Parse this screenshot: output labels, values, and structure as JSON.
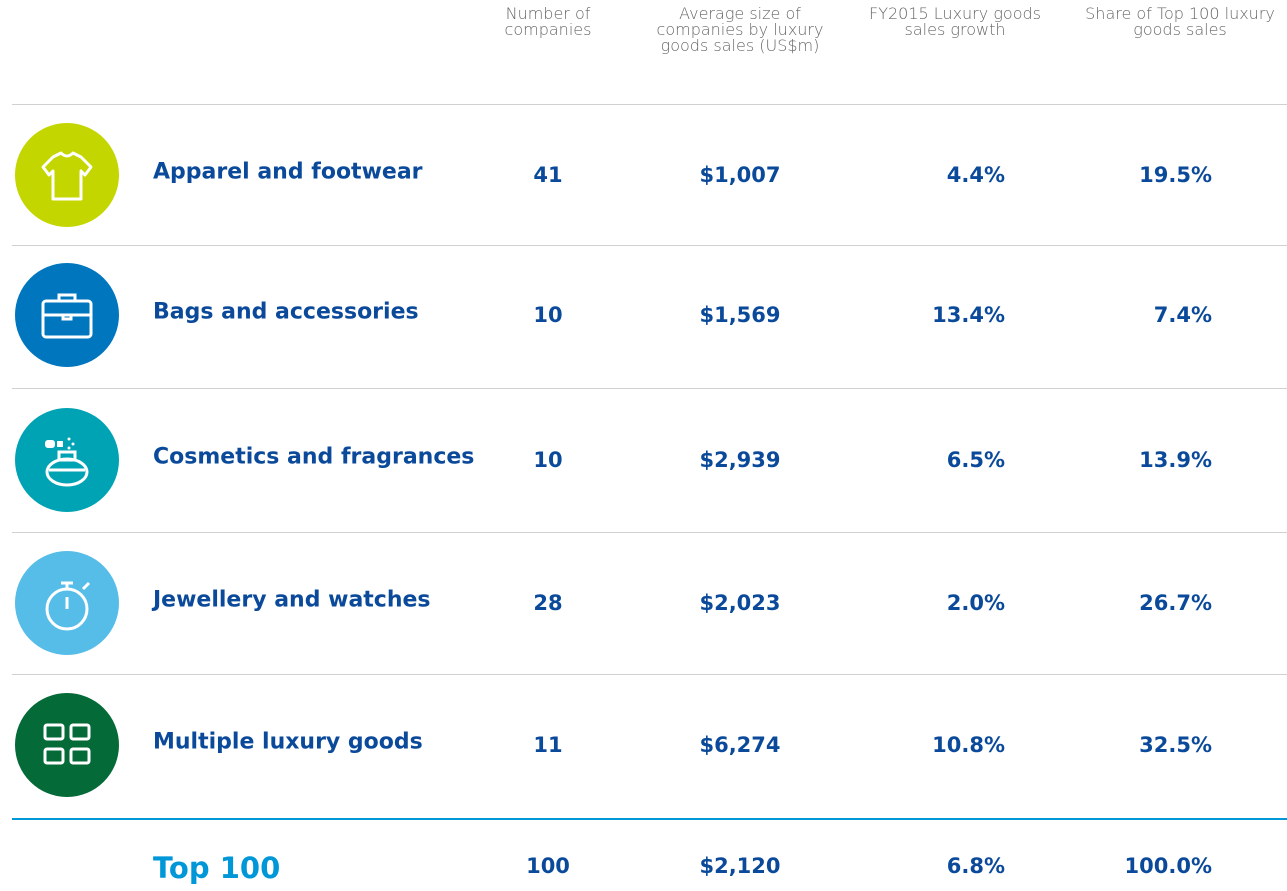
{
  "table": {
    "headers": [
      "Number of companies",
      "Average size of companies by luxury goods sales (US$m)",
      "FY2015 Luxury goods sales growth",
      "Share of Top 100 luxury goods sales"
    ],
    "rows": [
      [
        "Apparel and footwear",
        "41",
        "$1,007",
        "4.4%",
        "19.5%"
      ],
      [
        "Bags and accessories",
        "10",
        "$1,569",
        "13.4%",
        "7.4%"
      ],
      [
        "Cosmetics and fragrances",
        "10",
        "$2,939",
        "6.5%",
        "13.9%"
      ],
      [
        "Jewellery and watches",
        "28",
        "$2,023",
        "2.0%",
        "26.7%"
      ],
      [
        "Multiple luxury goods",
        "11",
        "$6,274",
        "10.8%",
        "32.5%"
      ]
    ],
    "total": [
      "Top 100",
      "100",
      "$2,120",
      "6.8%",
      "100.0%"
    ]
  }
}
